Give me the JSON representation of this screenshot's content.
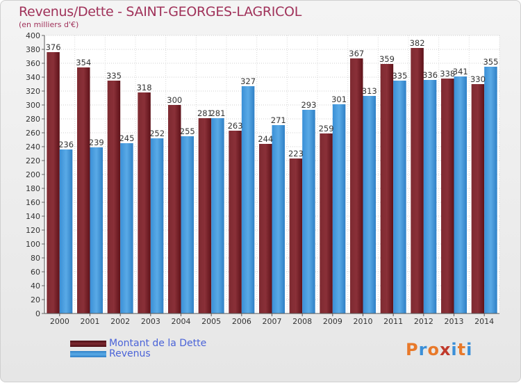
{
  "title": "Revenus/Dette - SAINT-GEORGES-LAGRICOL",
  "subtitle": "(en milliers d'€)",
  "logo": {
    "text": "Proxiti",
    "colors": [
      "#e8792a",
      "#3a8fd8",
      "#e8792a",
      "#c0392b",
      "#3a8fd8",
      "#e8792a",
      "#3a8fd8"
    ]
  },
  "colors": {
    "dette": "#6a1e26",
    "revenus": "#3d93d6",
    "text": "#a0325a",
    "legend_text": "#4a63d8"
  },
  "legend": [
    {
      "label": "Montant de la Dette",
      "color": "#6a1e26"
    },
    {
      "label": "Revenus",
      "color": "#3d93d6"
    }
  ],
  "chart_data": {
    "type": "bar",
    "title": "Revenus/Dette - SAINT-GEORGES-LAGRICOL",
    "subtitle": "(en milliers d'€)",
    "categories": [
      "2000",
      "2001",
      "2002",
      "2003",
      "2004",
      "2005",
      "2006",
      "2007",
      "2008",
      "2009",
      "2010",
      "2011",
      "2012",
      "2013",
      "2014"
    ],
    "series": [
      {
        "name": "Montant de la Dette",
        "color": "#6a1e26",
        "values": [
          376,
          354,
          335,
          318,
          300,
          281,
          263,
          244,
          223,
          259,
          367,
          359,
          382,
          338,
          330
        ]
      },
      {
        "name": "Revenus",
        "color": "#3d93d6",
        "values": [
          236,
          239,
          245,
          252,
          255,
          281,
          327,
          271,
          293,
          301,
          313,
          335,
          336,
          341,
          355
        ]
      }
    ],
    "ylim": [
      0,
      400
    ],
    "yticks": [
      0,
      20,
      40,
      60,
      80,
      100,
      120,
      140,
      160,
      180,
      200,
      220,
      240,
      260,
      280,
      300,
      320,
      340,
      360,
      380,
      400
    ],
    "grid": true,
    "legend_position": "bottom-left",
    "data_labels": true
  }
}
